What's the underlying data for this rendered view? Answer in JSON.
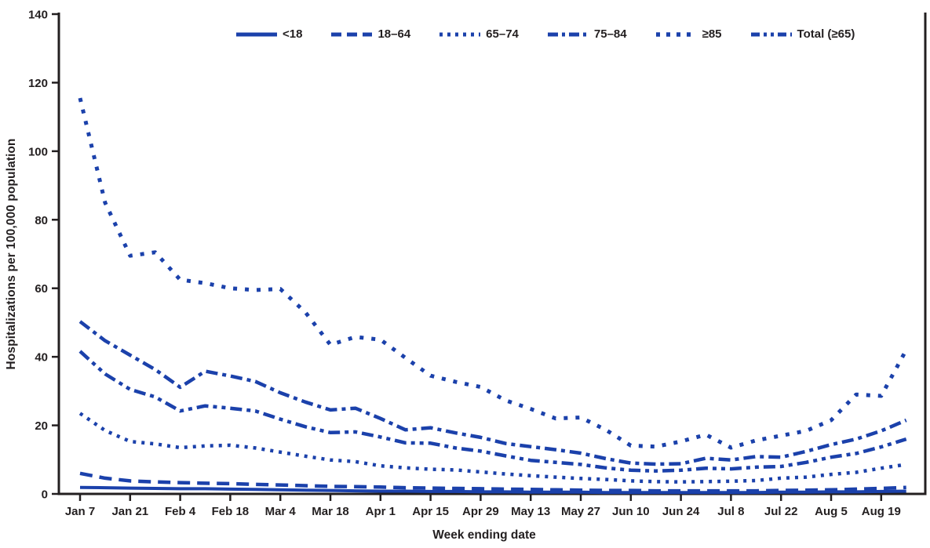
{
  "figure": {
    "background": "#ffffff",
    "line_color": "#1b41ab",
    "text_color": "#231f20",
    "axis_color": "#231f20"
  },
  "y_axis": {
    "title": "Hospitalizations per 100,000 population"
  },
  "x_axis": {
    "title": "Week ending date"
  },
  "chart_data": {
    "type": "line",
    "title": "",
    "xlabel": "Week ending date",
    "ylabel": "Hospitalizations per 100,000 population",
    "ylim": [
      0,
      140
    ],
    "y_ticks": [
      0,
      20,
      40,
      60,
      80,
      100,
      120,
      140
    ],
    "grid": false,
    "legend_position": "top",
    "x": [
      "Jan 7",
      "Jan 14",
      "Jan 21",
      "Jan 28",
      "Feb 4",
      "Feb 11",
      "Feb 18",
      "Feb 25",
      "Mar 4",
      "Mar 11",
      "Mar 18",
      "Mar 25",
      "Apr 1",
      "Apr 8",
      "Apr 15",
      "Apr 22",
      "Apr 29",
      "May 6",
      "May 13",
      "May 20",
      "May 27",
      "Jun 3",
      "Jun 10",
      "Jun 17",
      "Jun 24",
      "Jul 1",
      "Jul 8",
      "Jul 15",
      "Jul 22",
      "Jul 29",
      "Aug 5",
      "Aug 12",
      "Aug 19",
      "Aug 26"
    ],
    "x_tick_labels_shown": [
      "Jan 7",
      "Jan 21",
      "Feb 4",
      "Feb 18",
      "Mar 4",
      "Mar 18",
      "Apr 1",
      "Apr 15",
      "Apr 29",
      "May 13",
      "May 27",
      "Jun 10",
      "Jun 24",
      "Jul 8",
      "Jul 22",
      "Aug 5",
      "Aug 19"
    ],
    "series": [
      {
        "name": "<18",
        "style": "solid",
        "values": [
          1.9,
          1.8,
          1.7,
          1.6,
          1.5,
          1.5,
          1.4,
          1.3,
          1.2,
          1.1,
          1.0,
          0.9,
          0.8,
          0.8,
          0.7,
          0.7,
          0.6,
          0.6,
          0.5,
          0.5,
          0.5,
          0.4,
          0.4,
          0.4,
          0.4,
          0.4,
          0.4,
          0.4,
          0.5,
          0.5,
          0.6,
          0.6,
          0.7,
          0.8
        ]
      },
      {
        "name": "18–64",
        "style": "dashed",
        "values": [
          6.0,
          4.6,
          3.8,
          3.5,
          3.3,
          3.1,
          3.0,
          2.8,
          2.6,
          2.4,
          2.2,
          2.1,
          2.0,
          1.8,
          1.7,
          1.6,
          1.5,
          1.4,
          1.3,
          1.2,
          1.1,
          1.0,
          1.0,
          0.9,
          0.9,
          0.9,
          0.9,
          0.9,
          1.0,
          1.1,
          1.2,
          1.4,
          1.6,
          1.9
        ]
      },
      {
        "name": "65–74",
        "style": "dotted",
        "values": [
          23.5,
          18.5,
          15.3,
          14.6,
          13.5,
          14.0,
          14.2,
          13.4,
          12.2,
          11.0,
          9.9,
          9.4,
          8.2,
          7.6,
          7.2,
          7.0,
          6.4,
          5.8,
          5.3,
          4.9,
          4.5,
          4.2,
          3.8,
          3.6,
          3.5,
          3.6,
          3.7,
          3.9,
          4.6,
          4.9,
          5.7,
          6.3,
          7.5,
          8.6
        ]
      },
      {
        "name": "75–84",
        "style": "dash-dot",
        "values": [
          50.3,
          44.7,
          40.5,
          36.3,
          31.1,
          35.8,
          34.4,
          32.8,
          29.5,
          26.8,
          24.5,
          25.0,
          22.0,
          18.7,
          19.3,
          17.8,
          16.5,
          14.7,
          13.8,
          12.9,
          11.9,
          10.3,
          9.0,
          8.7,
          8.8,
          10.4,
          9.9,
          10.9,
          10.7,
          12.4,
          14.4,
          16.0,
          18.4,
          21.5
        ]
      },
      {
        "name": "≥85",
        "style": "square-dot",
        "values": [
          115.5,
          85.0,
          69.5,
          70.5,
          62.5,
          61.5,
          60.0,
          59.5,
          59.8,
          53.0,
          43.5,
          45.8,
          45.0,
          39.7,
          34.5,
          32.7,
          31.2,
          27.3,
          24.8,
          22.0,
          22.3,
          18.7,
          14.1,
          13.8,
          15.3,
          17.3,
          13.5,
          15.6,
          17.0,
          18.4,
          21.5,
          29.0,
          28.6,
          42.0
        ]
      },
      {
        "name": "Total (≥65)",
        "style": "dash-dot-dot",
        "values": [
          41.6,
          35.0,
          30.5,
          28.3,
          24.2,
          25.7,
          25.0,
          24.2,
          21.8,
          19.6,
          17.9,
          18.1,
          16.6,
          14.9,
          14.8,
          13.4,
          12.5,
          11.1,
          9.8,
          9.2,
          8.6,
          7.6,
          6.9,
          6.7,
          6.9,
          7.5,
          7.3,
          7.8,
          8.0,
          9.2,
          10.7,
          11.8,
          13.7,
          16.0
        ]
      }
    ]
  }
}
